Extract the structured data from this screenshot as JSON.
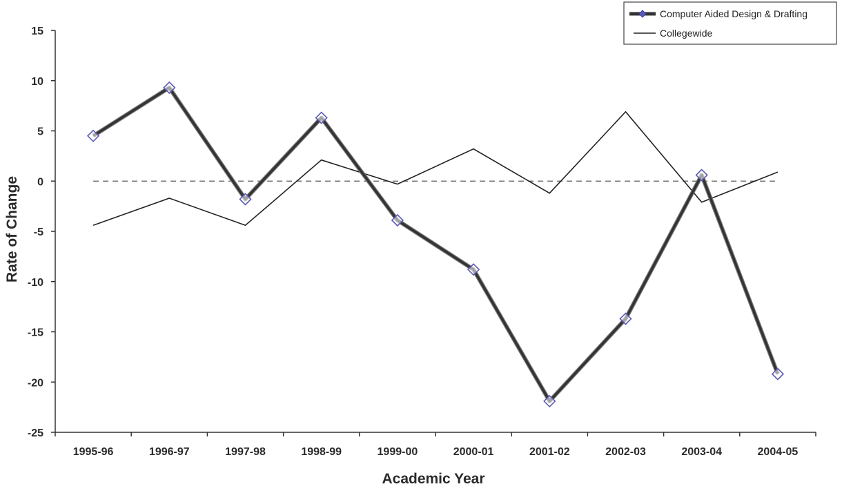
{
  "chart_data": {
    "type": "line",
    "xlabel": "Academic Year",
    "ylabel": "Rate of Change",
    "categories": [
      "1995-96",
      "1996-97",
      "1997-98",
      "1998-99",
      "1999-00",
      "2000-01",
      "2001-02",
      "2002-03",
      "2003-04",
      "2004-05"
    ],
    "ylim": [
      -25,
      15
    ],
    "yticks": [
      15,
      10,
      5,
      0,
      -5,
      -10,
      -15,
      -20,
      -25
    ],
    "ytick_labels": [
      "15",
      "10",
      "5",
      "0",
      "-5",
      "-10",
      "-15",
      "-20",
      "-25"
    ],
    "reference_line": {
      "y": 0,
      "style": "dashed"
    },
    "grid": false,
    "legend_position": "top-right",
    "series": [
      {
        "name": "Computer Aided Design & Drafting",
        "values": [
          4.5,
          9.3,
          -1.8,
          6.3,
          -3.9,
          -8.8,
          -21.9,
          -13.7,
          0.6,
          -19.2
        ],
        "color": "#333333",
        "marker": "diamond",
        "marker_color": "#5a5ab8"
      },
      {
        "name": "Collegewide",
        "values": [
          -4.4,
          -1.7,
          -4.4,
          2.1,
          -0.3,
          3.2,
          -1.2,
          6.9,
          -2.1,
          0.9
        ],
        "color": "#222222",
        "marker": "none"
      }
    ]
  }
}
